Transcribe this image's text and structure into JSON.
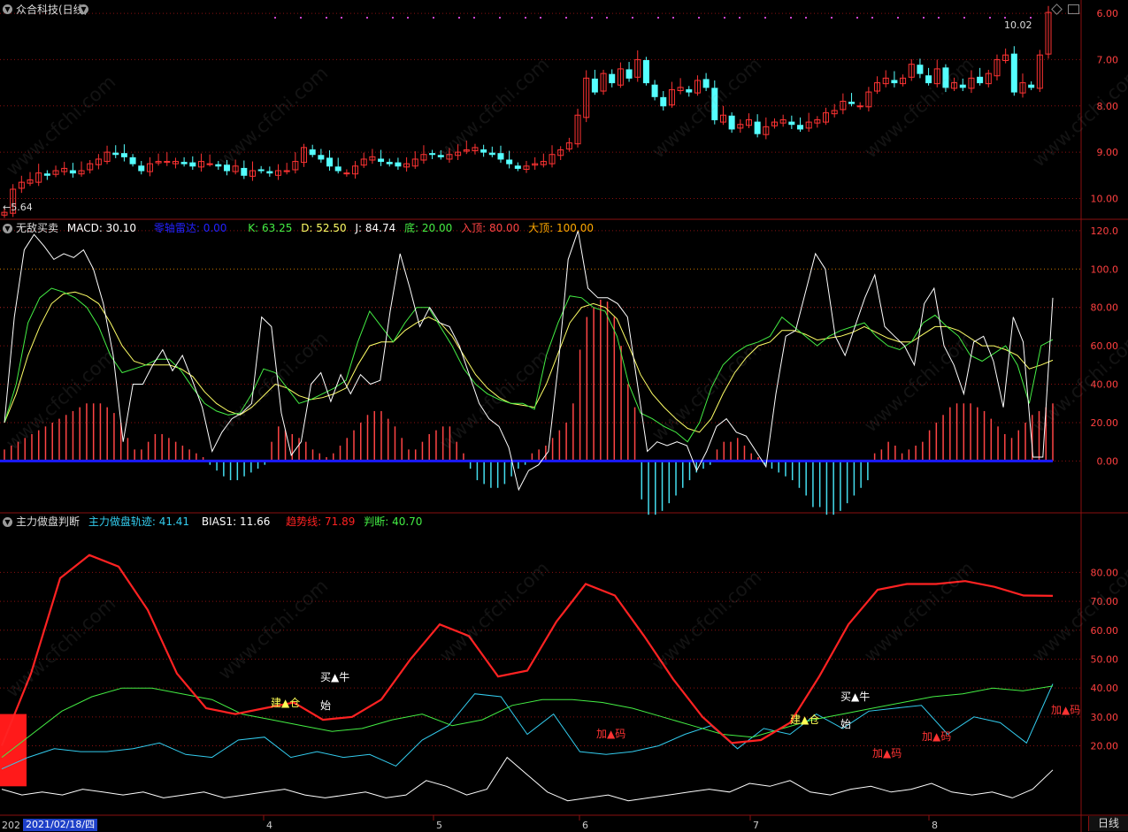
{
  "window": {
    "title": "众合科技(日线)",
    "period_label": "日线",
    "watermark": "www.cfchi.com"
  },
  "panel1": {
    "y_ticks": [
      "10.00",
      "9.00",
      "8.00",
      "7.00",
      "6.00"
    ],
    "high_label": "10.02",
    "low_label": "5.64"
  },
  "panel2": {
    "name": "无敌买卖",
    "macd": {
      "label": "MACD: 30.10",
      "color": "#ffffff"
    },
    "zero_line": {
      "label": "零轴雷达: 0.00",
      "color": "#2222ff"
    },
    "k": {
      "label": "K: 63.25",
      "color": "#44ee44"
    },
    "d": {
      "label": "D: 52.50",
      "color": "#ffff66"
    },
    "j": {
      "label": "J: 84.74",
      "color": "#ffffff"
    },
    "bottom": {
      "label": "底: 20.00",
      "color": "#44ee44"
    },
    "entry_top": {
      "label": "入顶: 80.00",
      "color": "#ff4444"
    },
    "big_top": {
      "label": "大顶: 100.00",
      "color": "#ffaa00"
    },
    "y_ticks": [
      "120.0",
      "100.0",
      "80.00",
      "60.00",
      "40.00",
      "20.00",
      "0.00"
    ]
  },
  "panel3": {
    "name": "主力做盘判断",
    "track": {
      "label": "主力做盘轨迹: 41.41",
      "color": "#33ccee"
    },
    "bias": {
      "label": "BIAS1: 11.66",
      "color": "#ffffff"
    },
    "trend": {
      "label": "趋势线: 71.89",
      "color": "#ff2222"
    },
    "judge": {
      "label": "判断: 40.70",
      "color": "#44ee44"
    },
    "y_ticks": [
      "80.00",
      "70.00",
      "60.00",
      "50.00",
      "40.00",
      "30.00",
      "20.00"
    ],
    "signals": {
      "build_1": "建▲仓",
      "buy_1": "买▲牛",
      "start_1": "始",
      "build_2": "建▲仓",
      "buy_2": "买▲牛",
      "start_2": "始",
      "add_1": "加▲码",
      "add_2": "加▲码",
      "add_3": "加▲码",
      "add_4": "加▲码"
    }
  },
  "x_axis": {
    "date_label": "2021/02/18/四",
    "year_stub": "202",
    "months": [
      "4",
      "5",
      "6",
      "7",
      "8"
    ]
  },
  "colors": {
    "up": "#ff3333",
    "down": "#55ffff",
    "grid": "#8a1010",
    "axis_text": "#ff4040"
  },
  "chart_data": [
    {
      "type": "candlestick",
      "title": "众合科技(日线)",
      "y_ticks": [
        6.0,
        7.0,
        8.0,
        9.0,
        10.0
      ],
      "ylim": [
        5.55,
        10.25
      ],
      "annotations": [
        {
          "text": "10.02",
          "value": 10.02
        },
        {
          "text": "5.64",
          "value": 5.64
        }
      ],
      "series": [
        {
          "name": "close",
          "values": [
            5.7,
            6.2,
            6.35,
            6.4,
            6.55,
            6.5,
            6.6,
            6.65,
            6.55,
            6.6,
            6.75,
            6.85,
            7.0,
            6.95,
            6.9,
            6.75,
            6.6,
            6.75,
            6.8,
            6.8,
            6.8,
            6.75,
            6.7,
            6.8,
            6.75,
            6.7,
            6.6,
            6.7,
            6.5,
            6.6,
            6.6,
            6.55,
            6.6,
            6.6,
            6.8,
            7.1,
            6.95,
            6.85,
            6.7,
            6.6,
            6.55,
            6.7,
            6.85,
            6.9,
            6.8,
            6.75,
            6.7,
            6.75,
            6.85,
            6.95,
            6.95,
            6.9,
            6.95,
            7.0,
            7.05,
            7.1,
            7.0,
            6.95,
            6.85,
            6.75,
            6.65,
            6.7,
            6.75,
            6.8,
            6.95,
            7.05,
            7.2,
            7.8,
            8.6,
            8.3,
            8.7,
            8.5,
            8.8,
            8.6,
            9.0,
            8.5,
            8.2,
            8.0,
            8.35,
            8.4,
            8.3,
            8.55,
            8.4,
            7.7,
            7.8,
            7.5,
            7.6,
            7.7,
            7.4,
            7.55,
            7.65,
            7.7,
            7.6,
            7.5,
            7.65,
            7.7,
            7.85,
            7.9,
            8.1,
            8.05,
            8.0,
            8.3,
            8.5,
            8.6,
            8.5,
            8.6,
            8.9,
            8.7,
            8.5,
            8.8,
            8.4,
            8.5,
            8.4,
            8.6,
            8.5,
            8.7,
            9.0,
            9.1,
            8.3,
            8.5,
            8.4,
            9.1,
            10.02
          ]
        }
      ],
      "candles": "see series close; opens alternate per candle colour"
    },
    {
      "type": "line",
      "title": "无敌买卖",
      "ylim": [
        -27,
        125
      ],
      "y_ticks": [
        0,
        20,
        40,
        60,
        80,
        100,
        120
      ],
      "series": [
        {
          "name": "J",
          "values": [
            20,
            75,
            110,
            118,
            112,
            105,
            108,
            106,
            110,
            100,
            82,
            55,
            10,
            40,
            40,
            50,
            58,
            47,
            55,
            42,
            28,
            5,
            15,
            22,
            25,
            30,
            75,
            70,
            25,
            3,
            10,
            40,
            46,
            31,
            45,
            35,
            45,
            40,
            42,
            78,
            108,
            90,
            70,
            80,
            72,
            70,
            60,
            45,
            30,
            22,
            18,
            7,
            -15,
            -5,
            -2,
            5,
            50,
            105,
            120,
            90,
            85,
            85,
            82,
            75,
            40,
            5,
            10,
            8,
            10,
            8,
            -5,
            5,
            18,
            22,
            15,
            13,
            5,
            -3,
            35,
            65,
            68,
            88,
            108,
            100,
            65,
            55,
            70,
            85,
            97,
            70,
            65,
            60,
            50,
            82,
            90,
            60,
            50,
            35,
            62,
            65,
            52,
            28,
            75,
            62,
            2,
            2,
            85
          ]
        },
        {
          "name": "K",
          "values": [
            20,
            40,
            72,
            85,
            90,
            88,
            85,
            80,
            70,
            55,
            46,
            48,
            50,
            53,
            53,
            47,
            38,
            30,
            26,
            24,
            25,
            35,
            48,
            46,
            38,
            30,
            32,
            35,
            38,
            42,
            62,
            78,
            70,
            62,
            72,
            80,
            80,
            70,
            60,
            48,
            40,
            35,
            32,
            30,
            30,
            27,
            55,
            72,
            86,
            85,
            80,
            78,
            65,
            40,
            25,
            22,
            18,
            15,
            10,
            20,
            38,
            50,
            56,
            60,
            62,
            65,
            75,
            70,
            65,
            60,
            65,
            68,
            70,
            72,
            65,
            60,
            58,
            62,
            72,
            76,
            70,
            65,
            55,
            52,
            56,
            60,
            50,
            30,
            60,
            63.25
          ]
        },
        {
          "name": "D",
          "values": [
            20,
            35,
            55,
            70,
            82,
            87,
            88,
            86,
            82,
            72,
            60,
            52,
            50,
            50,
            50,
            48,
            44,
            36,
            30,
            26,
            24,
            28,
            34,
            40,
            38,
            34,
            32,
            33,
            35,
            38,
            50,
            60,
            62,
            62,
            68,
            72,
            75,
            72,
            65,
            55,
            45,
            38,
            33,
            30,
            29,
            28,
            40,
            56,
            72,
            80,
            82,
            80,
            74,
            60,
            45,
            35,
            28,
            22,
            17,
            15,
            22,
            35,
            46,
            54,
            60,
            62,
            68,
            68,
            66,
            63,
            64,
            65,
            67,
            70,
            67,
            64,
            62,
            62,
            66,
            70,
            70,
            68,
            64,
            60,
            60,
            58,
            55,
            48,
            50,
            52.5
          ]
        },
        {
          "name": "MACD",
          "values": [
            6,
            8,
            10,
            12,
            14,
            16,
            18,
            20,
            22,
            24,
            26,
            28,
            30,
            30,
            30,
            28,
            25,
            20,
            12,
            6,
            6,
            10,
            14,
            14,
            12,
            10,
            8,
            6,
            4,
            2,
            -2,
            -5,
            -8,
            -10,
            -10,
            -8,
            -6,
            -4,
            -2,
            10,
            18,
            16,
            14,
            12,
            10,
            6,
            4,
            2,
            4,
            8,
            12,
            16,
            20,
            24,
            26,
            26,
            22,
            18,
            12,
            6,
            6,
            10,
            14,
            16,
            18,
            18,
            10,
            4,
            -4,
            -10,
            -12,
            -14,
            -14,
            -12,
            -8,
            -4,
            -2,
            4,
            6,
            8,
            12,
            16,
            20,
            30,
            58,
            75,
            80,
            84,
            83,
            75,
            60,
            40,
            28,
            -20,
            -28,
            -28,
            -26,
            -22,
            -18,
            -14,
            -10,
            -6,
            -4,
            -2,
            6,
            10,
            10,
            12,
            8,
            4,
            2,
            -2,
            -4,
            -6,
            -8,
            -10,
            -14,
            -18,
            -24,
            -24,
            -28,
            -28,
            -26,
            -22,
            -18,
            -14,
            -10,
            4,
            6,
            10,
            8,
            4,
            6,
            8,
            10,
            16,
            20,
            24,
            28,
            30,
            30,
            30,
            28,
            26,
            22,
            18,
            14,
            12,
            16,
            20,
            24,
            26,
            28,
            30
          ]
        }
      ]
    },
    {
      "type": "line",
      "title": "主力做盘判断",
      "ylim": [
        -4,
        100
      ],
      "y_ticks": [
        20,
        30,
        40,
        50,
        60,
        70,
        80
      ],
      "series": [
        {
          "name": "趋势线",
          "values": [
            20,
            45,
            78,
            86,
            82,
            67,
            45,
            33,
            31,
            33,
            35,
            29,
            30,
            36,
            50,
            62,
            58,
            44,
            46,
            63,
            76,
            72,
            58,
            43,
            30,
            21,
            22,
            28,
            44,
            62,
            74,
            76,
            76,
            77,
            75,
            72,
            71.89
          ]
        },
        {
          "name": "判断",
          "values": [
            16,
            24,
            32,
            37,
            40,
            40,
            38,
            36,
            31,
            29,
            27,
            25,
            26,
            29,
            31,
            27,
            29,
            34,
            36,
            36,
            35,
            33,
            30,
            27,
            24,
            23,
            26,
            29,
            31,
            33,
            35,
            37,
            38,
            40,
            39,
            40.7
          ]
        },
        {
          "name": "主力做盘轨迹",
          "values": [
            12,
            16,
            19,
            18,
            18,
            19,
            21,
            17,
            16,
            22,
            23,
            16,
            18,
            16,
            17,
            13,
            22,
            27,
            38,
            37,
            24,
            31,
            18,
            17,
            18,
            20,
            24,
            27,
            19,
            26,
            24,
            31,
            26,
            32,
            33,
            34,
            24,
            30,
            28,
            21,
            41.41
          ]
        },
        {
          "name": "BIAS1",
          "values": [
            5,
            3,
            4,
            3,
            5,
            4,
            3,
            4,
            2,
            3,
            4,
            2,
            3,
            4,
            5,
            3,
            2,
            3,
            4,
            2,
            3,
            8,
            6,
            3,
            5,
            16,
            10,
            4,
            1,
            2,
            3,
            1,
            2,
            3,
            4,
            5,
            4,
            7,
            6,
            8,
            4,
            3,
            5,
            6,
            4,
            5,
            7,
            4,
            3,
            4,
            2,
            5,
            11.66
          ]
        }
      ]
    }
  ]
}
